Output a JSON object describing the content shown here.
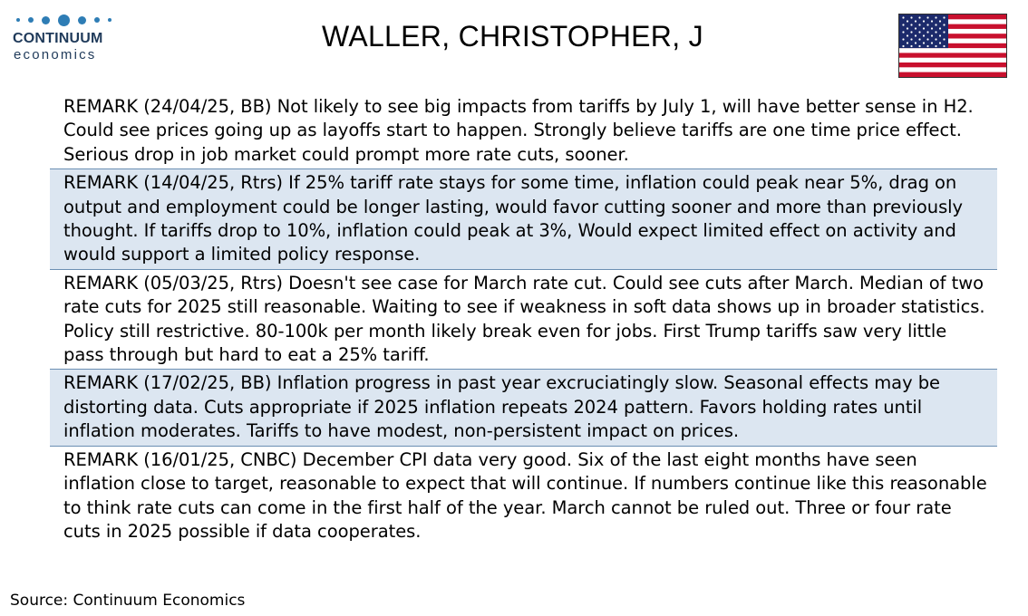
{
  "header": {
    "logo_name": "CONTINUUM",
    "logo_sub": "economics",
    "title": "WALLER, CHRISTOPHER, J",
    "flag_icon": "us-flag-icon"
  },
  "colors": {
    "row_shade": "#dce6f1",
    "divider": "#6b8fb3",
    "logo_blue": "#2e7db5",
    "logo_text": "#1f3a5a"
  },
  "remarks": [
    {
      "text": "REMARK (24/04/25, BB) Not likely to see big impacts from tariffs by July 1, will have better sense in H2. Could see prices going up as layoffs start to happen. Strongly believe tariffs are one time price effect. Serious drop in job market could prompt more rate cuts, sooner."
    },
    {
      "text": "REMARK (14/04/25, Rtrs) If 25% tariff rate stays for some time, inflation could peak near 5%, drag on output and employment could be longer lasting, would favor cutting sooner and more than previously thought. If tariffs drop to 10%, inflation could peak at 3%, Would expect limited effect on activity and would support a limited policy response."
    },
    {
      "text": "REMARK (05/03/25, Rtrs) Doesn't see case for March rate cut. Could see cuts after March. Median of two rate cuts for 2025 still reasonable.  Waiting to see if weakness in soft data shows up in broader statistics. Policy still restrictive. 80-100k per month likely break even for jobs. First Trump tariffs saw very little pass through but hard to eat a 25% tariff."
    },
    {
      "text": "REMARK (17/02/25, BB) Inflation progress in past year excruciatingly slow. Seasonal effects may be distorting data. Cuts appropriate if 2025 inflation repeats 2024 pattern. Favors holding rates until inflation moderates. Tariffs to have modest, non-persistent impact on prices."
    },
    {
      "text": "REMARK (16/01/25, CNBC) December CPI data very good. Six of the last eight months have seen inflation close to target, reasonable to expect that will continue. If numbers continue like this reasonable to think rate cuts can come in the first half of the year. March cannot be ruled out. Three or four rate cuts in 2025 possible if data cooperates."
    }
  ],
  "footer": {
    "source": "Source: Continuum Economics"
  }
}
